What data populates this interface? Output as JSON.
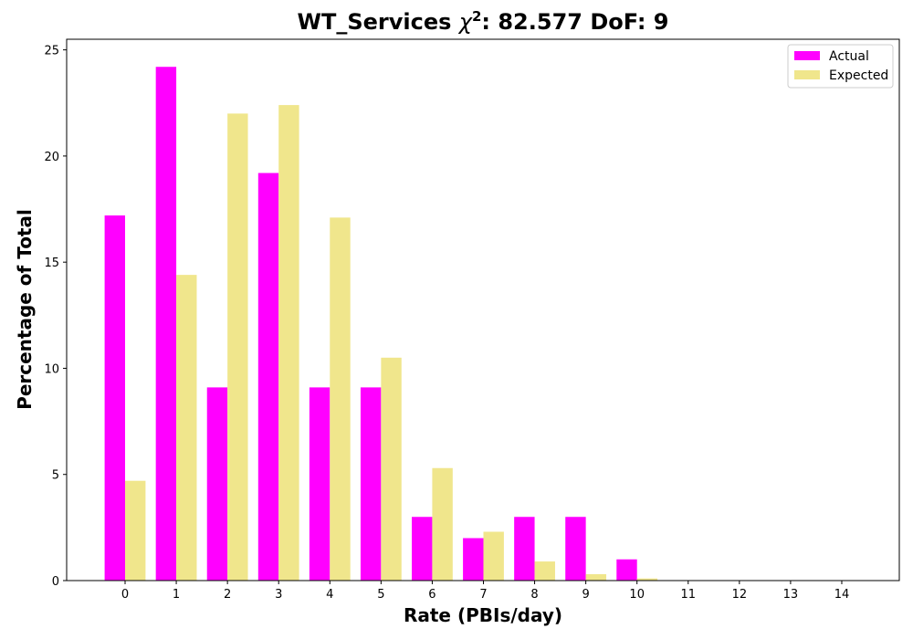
{
  "chart_data": {
    "type": "bar",
    "title_prefix": "WT_Services ",
    "title_chi": "χ",
    "title_sup": "2",
    "title_suffix": ": 82.577 DoF: 9",
    "xlabel": "Rate (PBIs/day)",
    "ylabel": "Percentage of Total",
    "categories": [
      "0",
      "1",
      "2",
      "3",
      "4",
      "5",
      "6",
      "7",
      "8",
      "9",
      "10",
      "11",
      "12",
      "13",
      "14"
    ],
    "series": [
      {
        "name": "Actual",
        "color": "#ff00ff",
        "values": [
          17.2,
          24.2,
          9.1,
          19.2,
          9.1,
          9.1,
          3.0,
          2.0,
          3.0,
          3.0,
          1.0,
          0,
          0,
          0,
          0
        ]
      },
      {
        "name": "Expected",
        "color": "#f0e68c",
        "values": [
          4.7,
          14.4,
          22.0,
          22.4,
          17.1,
          10.5,
          5.3,
          2.3,
          0.9,
          0.3,
          0.1,
          0.02,
          0,
          0,
          0
        ]
      }
    ],
    "ylim": [
      0,
      25.5
    ],
    "yticks": [
      "0",
      "5",
      "10",
      "15",
      "20",
      "25"
    ],
    "grid": false,
    "legend_position": "top-right"
  }
}
